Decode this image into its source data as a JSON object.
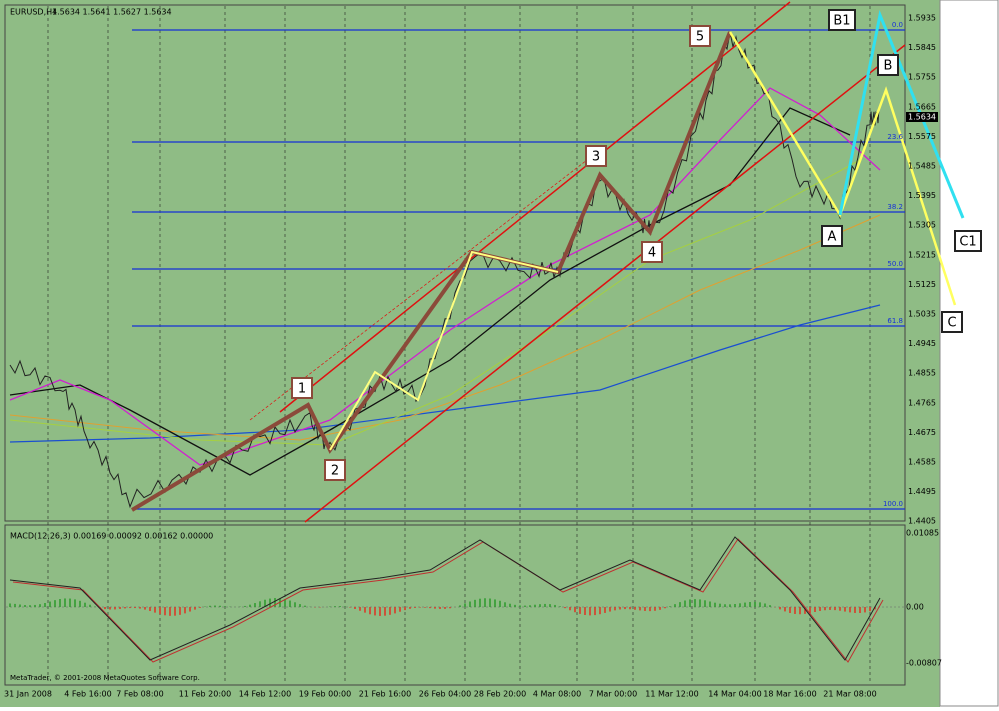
{
  "header": {
    "symbol": "EURUSD,H4",
    "ohlc": "1.5634 1.5641 1.5627 1.5634"
  },
  "price_axis": [
    "1.5935",
    "1.5845",
    "1.5755",
    "1.5665",
    "1.5575",
    "1.5485",
    "1.5395",
    "1.5305",
    "1.5215",
    "1.5125",
    "1.5035",
    "1.4945",
    "1.4855",
    "1.4765",
    "1.4675",
    "1.4585",
    "1.4495",
    "1.4405"
  ],
  "current_price": "1.5634",
  "fib_levels": [
    "0.0",
    "23.6",
    "38.2",
    "50.0",
    "61.8",
    "100.0"
  ],
  "wave_labels": [
    "1",
    "2",
    "3",
    "4",
    "5",
    "A",
    "B",
    "C",
    "B1",
    "C1"
  ],
  "macd": {
    "title": "MACD(12,26,3) 0.00169 0.00092 0.00162 0.00000",
    "axis": [
      "0.01085",
      "0.00",
      "-0.00807"
    ]
  },
  "time_axis": [
    "31 Jan 2008",
    "4 Feb 16:00",
    "7 Feb 08:00",
    "11 Feb 20:00",
    "14 Feb 12:00",
    "19 Feb 00:00",
    "21 Feb 16:00",
    "26 Feb 04:00",
    "28 Feb 20:00",
    "4 Mar 08:00",
    "7 Mar 00:00",
    "11 Mar 12:00",
    "14 Mar 04:00",
    "18 Mar 16:00",
    "21 Mar 08:00"
  ],
  "copyright": "MetaTrader, © 2001-2008 MetaQuotes Software Corp."
}
